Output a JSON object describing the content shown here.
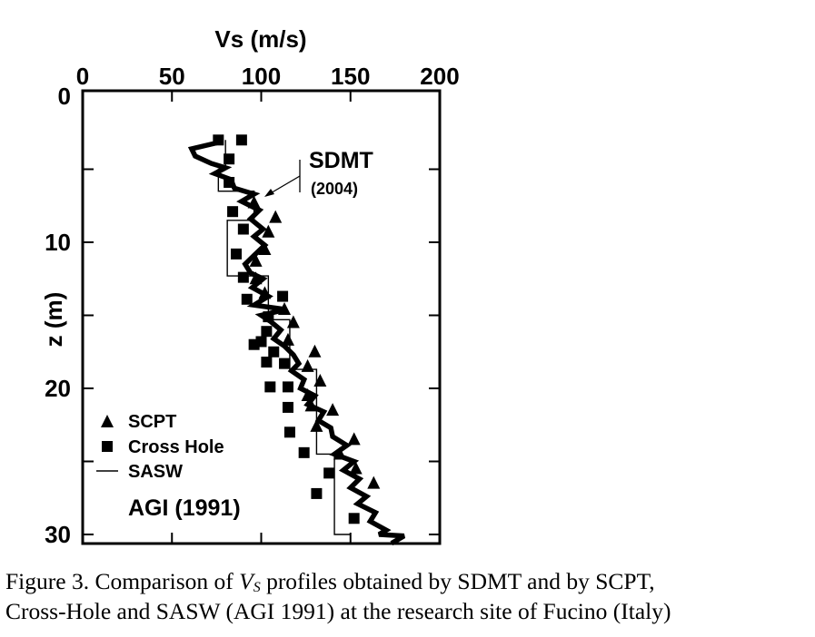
{
  "chart_data": {
    "type": "scatter",
    "title": "",
    "xlabel": "Vs (m/s)",
    "ylabel": "z (m)",
    "xlim": [
      0,
      200
    ],
    "ylim": [
      0,
      31
    ],
    "y_inverted": true,
    "x_ticks": [
      "0",
      "50",
      "100",
      "150",
      "200"
    ],
    "y_ticks": [
      "0",
      "10",
      "20",
      "30"
    ],
    "x_tick_values": [
      0,
      50,
      100,
      150,
      200
    ],
    "y_tick_values": [
      0,
      10,
      20,
      30
    ],
    "series": [
      {
        "name": "SDMT (2004)",
        "kind": "thick-line",
        "points": [
          [
            75,
            3.2
          ],
          [
            61,
            3.6
          ],
          [
            63,
            4.1
          ],
          [
            72,
            4.6
          ],
          [
            80,
            4.9
          ],
          [
            74,
            5.3
          ],
          [
            83,
            5.7
          ],
          [
            85,
            6.3
          ],
          [
            96,
            6.7
          ],
          [
            89,
            7.2
          ],
          [
            99,
            7.8
          ],
          [
            94,
            8.4
          ],
          [
            101,
            9.1
          ],
          [
            96,
            9.6
          ],
          [
            102,
            10.2
          ],
          [
            96,
            10.9
          ],
          [
            91,
            11.5
          ],
          [
            94,
            12.1
          ],
          [
            101,
            12.5
          ],
          [
            95,
            13.1
          ],
          [
            104,
            13.7
          ],
          [
            96,
            14.3
          ],
          [
            114,
            14.6
          ],
          [
            100,
            15.0
          ],
          [
            105,
            15.4
          ],
          [
            111,
            16.0
          ],
          [
            107,
            16.6
          ],
          [
            113,
            17.1
          ],
          [
            118,
            17.7
          ],
          [
            121,
            18.3
          ],
          [
            117,
            18.8
          ],
          [
            124,
            19.4
          ],
          [
            122,
            20.0
          ],
          [
            130,
            20.5
          ],
          [
            126,
            21.1
          ],
          [
            135,
            21.6
          ],
          [
            132,
            22.2
          ],
          [
            139,
            22.7
          ],
          [
            140,
            23.3
          ],
          [
            148,
            23.9
          ],
          [
            141,
            24.5
          ],
          [
            152,
            25.0
          ],
          [
            146,
            25.6
          ],
          [
            155,
            26.2
          ],
          [
            150,
            26.8
          ],
          [
            159,
            27.4
          ],
          [
            154,
            27.9
          ],
          [
            164,
            28.5
          ],
          [
            161,
            29.1
          ],
          [
            170,
            29.7
          ],
          [
            166,
            30.0
          ],
          [
            180,
            30.1
          ],
          [
            173,
            30.6
          ]
        ]
      },
      {
        "name": "SCPT",
        "kind": "triangle-marker",
        "points": [
          [
            96,
            7.3
          ],
          [
            108,
            8.3
          ],
          [
            104,
            9.3
          ],
          [
            102,
            10.5
          ],
          [
            97,
            11.3
          ],
          [
            97,
            12.5
          ],
          [
            102,
            13.5
          ],
          [
            113,
            14.6
          ],
          [
            118,
            15.5
          ],
          [
            115,
            16.7
          ],
          [
            130,
            17.5
          ],
          [
            126,
            18.5
          ],
          [
            133,
            19.5
          ],
          [
            126,
            20.5
          ],
          [
            128,
            21.2
          ],
          [
            140,
            21.5
          ],
          [
            131,
            22.6
          ],
          [
            152,
            23.5
          ],
          [
            144,
            24.5
          ],
          [
            153,
            25.5
          ],
          [
            163,
            26.5
          ]
        ]
      },
      {
        "name": "Cross Hole",
        "kind": "square-marker",
        "points": [
          [
            76,
            3.0
          ],
          [
            89,
            3.0
          ],
          [
            82,
            4.3
          ],
          [
            82,
            5.9
          ],
          [
            84,
            7.9
          ],
          [
            90,
            9.1
          ],
          [
            86,
            10.8
          ],
          [
            90,
            12.4
          ],
          [
            92,
            13.9
          ],
          [
            112,
            13.7
          ],
          [
            104,
            15.1
          ],
          [
            103,
            16.1
          ],
          [
            100,
            16.8
          ],
          [
            96,
            17.0
          ],
          [
            107,
            17.5
          ],
          [
            103,
            18.2
          ],
          [
            113,
            18.3
          ],
          [
            105,
            19.9
          ],
          [
            115,
            19.9
          ],
          [
            115,
            21.3
          ],
          [
            116,
            23.0
          ],
          [
            124,
            24.4
          ],
          [
            138,
            25.8
          ],
          [
            131,
            27.2
          ],
          [
            152,
            28.9
          ]
        ]
      },
      {
        "name": "SASW",
        "kind": "step-line",
        "layers": [
          [
            80,
            3,
            5
          ],
          [
            76,
            5,
            6.5
          ],
          [
            96,
            6.5,
            8.5
          ],
          [
            81,
            8.5,
            12.3
          ],
          [
            104,
            12.3,
            15.3
          ],
          [
            116,
            15.3,
            18.7
          ],
          [
            131,
            18.7,
            24.5
          ],
          [
            141,
            24.5,
            30
          ],
          [
            150,
            30,
            31
          ]
        ]
      }
    ],
    "annotations": [
      {
        "text": "SDMT",
        "subtext": "(2004)",
        "target_series": "SDMT (2004)"
      }
    ],
    "legend": {
      "location": "bottom-left",
      "entries": [
        {
          "symbol": "triangle",
          "label": "SCPT"
        },
        {
          "symbol": "square",
          "label": "Cross Hole"
        },
        {
          "symbol": "line",
          "label": "SASW"
        }
      ],
      "source": "AGI (1991)"
    }
  },
  "caption": {
    "prefix": "Figure 3. Comparison of ",
    "var": "V",
    "var_sub": "S",
    "line1_rest": " profiles obtained by SDMT and by SCPT,",
    "line2": "Cross-Hole and SASW (AGI 1991) at the research site of Fucino (Italy)"
  }
}
